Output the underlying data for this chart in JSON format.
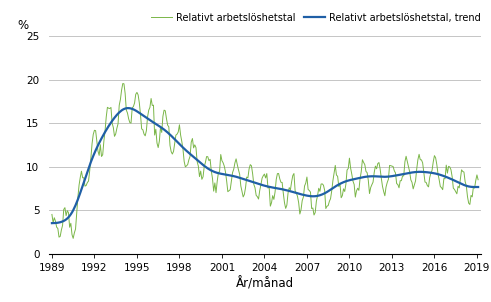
{
  "ylabel": "%",
  "xlabel": "År/månad",
  "legend_raw": [
    "Relativt arbetslöshetstal",
    "Relativt arbetslöshetstal, trend"
  ],
  "line_color_raw": "#7ab648",
  "line_color_trend": "#1f5fa6",
  "ylim": [
    0,
    25
  ],
  "yticks": [
    0,
    5,
    10,
    15,
    20,
    25
  ],
  "xticks": [
    1989,
    1992,
    1995,
    1998,
    2001,
    2004,
    2007,
    2010,
    2013,
    2016,
    2019
  ],
  "grid_color": "#bbbbbb",
  "background_color": "#ffffff"
}
